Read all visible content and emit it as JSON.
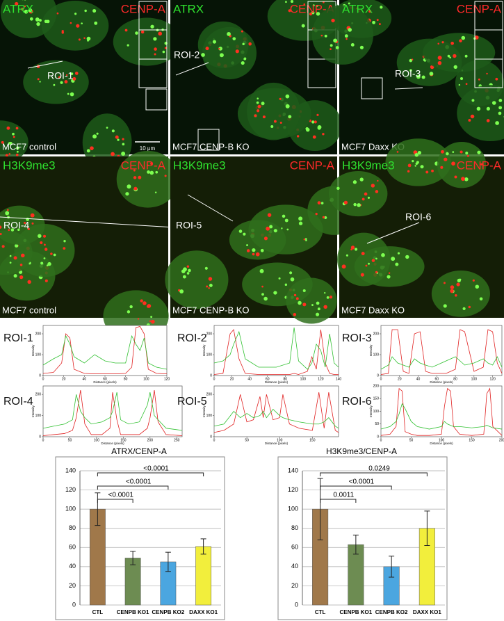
{
  "panels": [
    {
      "left": "ATRX",
      "right": "CENP-A",
      "caption": "MCF7 control",
      "roi": "ROI-1",
      "scale": "10 μm"
    },
    {
      "left": "ATRX",
      "right": "CENP-A",
      "caption": "MCF7 CENP-B KO",
      "roi": "ROI-2"
    },
    {
      "left": "ATRX",
      "right": "CENP-A",
      "caption": "MCF7 Daxx KO",
      "roi": "ROI-3"
    },
    {
      "left": "H3K9me3",
      "right": "CENP-A",
      "caption": "MCF7 control",
      "roi": "ROI-4"
    },
    {
      "left": "H3K9me3",
      "right": "CENP-A",
      "caption": "MCF7 CENP-B KO",
      "roi": "ROI-5"
    },
    {
      "left": "H3K9me3",
      "right": "CENP-A",
      "caption": "MCF7 Daxx KO",
      "roi": "ROI-6"
    }
  ],
  "chart_data": [
    {
      "type": "line",
      "title": "ROI-1",
      "xlabel": "Distance (pixels)",
      "ylabel": "Intensity",
      "x": [
        0,
        10,
        18,
        22,
        26,
        30,
        40,
        50,
        60,
        70,
        80,
        86,
        90,
        94,
        98,
        102,
        110,
        120
      ],
      "series": [
        {
          "color": "#e02020",
          "values": [
            10,
            15,
            60,
            200,
            180,
            30,
            10,
            8,
            8,
            8,
            10,
            40,
            230,
            235,
            200,
            30,
            10,
            8
          ]
        },
        {
          "color": "#2fc02f",
          "values": [
            50,
            80,
            100,
            190,
            150,
            90,
            60,
            100,
            70,
            60,
            60,
            190,
            150,
            120,
            180,
            60,
            40,
            30
          ]
        }
      ],
      "xlim": [
        0,
        120
      ],
      "xticks": [
        0,
        20,
        40,
        60,
        80,
        100,
        120
      ],
      "ylim": [
        0,
        240
      ],
      "yticks": [
        0,
        100,
        200
      ]
    },
    {
      "type": "line",
      "title": "ROI-2",
      "xlabel": "Distance (pixels)",
      "ylabel": "Intensity",
      "x": [
        0,
        10,
        18,
        22,
        28,
        35,
        50,
        70,
        85,
        90,
        95,
        105,
        110,
        115,
        120,
        125,
        130,
        135,
        140
      ],
      "series": [
        {
          "color": "#e02020",
          "values": [
            5,
            10,
            200,
            220,
            80,
            10,
            5,
            5,
            5,
            10,
            5,
            20,
            90,
            30,
            220,
            60,
            10,
            5,
            5
          ]
        },
        {
          "color": "#2fc02f",
          "values": [
            60,
            70,
            100,
            150,
            210,
            80,
            40,
            40,
            60,
            230,
            70,
            30,
            60,
            150,
            120,
            40,
            200,
            60,
            40
          ]
        }
      ],
      "xlim": [
        0,
        140
      ],
      "xticks": [
        0,
        20,
        40,
        60,
        80,
        100,
        120,
        140
      ],
      "ylim": [
        0,
        240
      ],
      "yticks": [
        0,
        100,
        200
      ]
    },
    {
      "type": "line",
      "title": "ROI-3",
      "xlabel": "Distance (pixels)",
      "ylabel": "Intensity",
      "x": [
        0,
        8,
        12,
        18,
        24,
        30,
        36,
        42,
        48,
        55,
        70,
        80,
        85,
        90,
        100,
        110,
        115,
        120,
        125,
        130
      ],
      "series": [
        {
          "color": "#e02020",
          "values": [
            5,
            10,
            220,
            220,
            20,
            10,
            200,
            210,
            20,
            10,
            10,
            30,
            220,
            210,
            20,
            40,
            220,
            210,
            60,
            10
          ]
        },
        {
          "color": "#2fc02f",
          "values": [
            30,
            50,
            90,
            60,
            50,
            40,
            80,
            60,
            50,
            40,
            70,
            90,
            70,
            50,
            60,
            80,
            60,
            50,
            90,
            40
          ]
        }
      ],
      "xlim": [
        0,
        130
      ],
      "xticks": [
        0,
        20,
        40,
        60,
        80,
        100,
        120
      ],
      "ylim": [
        0,
        240
      ],
      "yticks": [
        0,
        100,
        200
      ]
    },
    {
      "type": "line",
      "title": "ROI-4",
      "xlabel": "Distance (pixels)",
      "ylabel": "Intensity",
      "x": [
        0,
        20,
        40,
        55,
        62,
        70,
        78,
        90,
        110,
        125,
        130,
        138,
        145,
        160,
        180,
        195,
        200,
        208,
        215,
        230,
        260
      ],
      "series": [
        {
          "color": "#e02020",
          "values": [
            5,
            10,
            15,
            30,
            90,
            220,
            60,
            10,
            10,
            40,
            210,
            80,
            10,
            10,
            10,
            40,
            90,
            220,
            70,
            10,
            5
          ]
        },
        {
          "color": "#2fc02f",
          "values": [
            40,
            50,
            60,
            80,
            200,
            120,
            90,
            60,
            70,
            90,
            120,
            210,
            80,
            60,
            70,
            150,
            210,
            100,
            80,
            40,
            30
          ]
        }
      ],
      "xlim": [
        0,
        260
      ],
      "xticks": [
        0,
        50,
        100,
        150,
        200,
        250
      ],
      "ylim": [
        0,
        240
      ],
      "yticks": [
        0,
        100,
        200
      ]
    },
    {
      "type": "line",
      "title": "ROI-5",
      "xlabel": "Distance (pixels)",
      "ylabel": "Intensity",
      "x": [
        0,
        15,
        30,
        40,
        50,
        60,
        70,
        75,
        80,
        90,
        100,
        105,
        115,
        130,
        150,
        160,
        168,
        175,
        185,
        190
      ],
      "series": [
        {
          "color": "#e02020",
          "values": [
            20,
            30,
            60,
            200,
            70,
            80,
            190,
            90,
            200,
            80,
            90,
            200,
            60,
            40,
            30,
            210,
            40,
            210,
            30,
            20
          ]
        },
        {
          "color": "#2fc02f",
          "values": [
            50,
            60,
            120,
            90,
            110,
            90,
            100,
            120,
            90,
            130,
            100,
            90,
            80,
            70,
            60,
            60,
            70,
            90,
            50,
            40
          ]
        }
      ],
      "xlim": [
        0,
        190
      ],
      "xticks": [
        0,
        50,
        100,
        150
      ],
      "ylim": [
        0,
        240
      ],
      "yticks": [
        0,
        100,
        200
      ]
    },
    {
      "type": "line",
      "title": "ROI-6",
      "xlabel": "Distance (pixels)",
      "ylabel": "Intensity",
      "x": [
        0,
        15,
        25,
        30,
        35,
        40,
        50,
        60,
        80,
        100,
        105,
        110,
        115,
        120,
        130,
        150,
        170,
        175,
        180,
        185,
        200
      ],
      "series": [
        {
          "color": "#e02020",
          "values": [
            5,
            10,
            40,
            190,
            180,
            20,
            10,
            5,
            5,
            10,
            120,
            190,
            180,
            40,
            10,
            5,
            10,
            170,
            190,
            40,
            5
          ]
        },
        {
          "color": "#2fc02f",
          "values": [
            30,
            40,
            60,
            90,
            130,
            110,
            60,
            40,
            30,
            40,
            60,
            50,
            45,
            40,
            40,
            35,
            40,
            45,
            40,
            35,
            30
          ]
        }
      ],
      "xlim": [
        0,
        200
      ],
      "xticks": [
        0,
        50,
        100,
        150,
        200
      ],
      "ylim": [
        0,
        200
      ],
      "yticks": [
        0,
        50,
        100,
        150,
        200
      ]
    },
    {
      "type": "bar",
      "title": "ATRX/CENP-A",
      "categories": [
        "CTL",
        "CENPB KO1",
        "CENPB KO2",
        "DAXX KO1"
      ],
      "values": [
        100,
        49,
        45,
        61
      ],
      "errors": [
        17,
        7,
        10,
        8
      ],
      "colors": [
        "#a0784a",
        "#6d8c52",
        "#4ba6e0",
        "#f2ee3c"
      ],
      "ylim": [
        0,
        140
      ],
      "yticks": [
        0,
        20,
        40,
        60,
        80,
        100,
        120,
        140
      ],
      "grid": true,
      "annotations": [
        "<0.0001",
        "<0.0001",
        "<0.0001"
      ]
    },
    {
      "type": "bar",
      "title": "H3K9me3/CENP-A",
      "categories": [
        "CTL",
        "CENPB KO1",
        "CENPB KO2",
        "DAXX KO1"
      ],
      "values": [
        100,
        63,
        40,
        80
      ],
      "errors": [
        32,
        10,
        11,
        18
      ],
      "colors": [
        "#a0784a",
        "#6d8c52",
        "#4ba6e0",
        "#f2ee3c"
      ],
      "ylim": [
        0,
        140
      ],
      "yticks": [
        0,
        20,
        40,
        60,
        80,
        100,
        120,
        140
      ],
      "grid": true,
      "annotations": [
        "0.0011",
        "<0.0001",
        "0.0249"
      ]
    }
  ]
}
